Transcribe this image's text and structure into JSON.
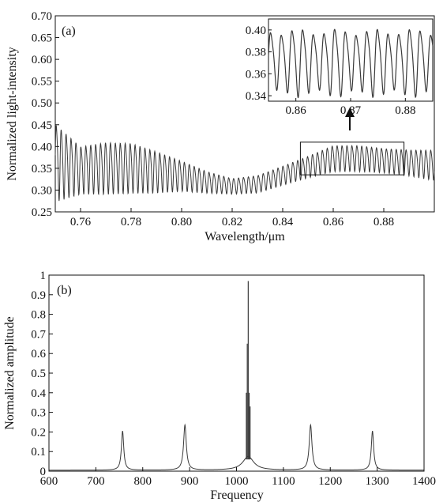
{
  "chart_data": [
    {
      "type": "line",
      "panel_label": "(a)",
      "xlabel": "Wavelength/μm",
      "ylabel": "Normalized light-intensity",
      "xlim": [
        0.75,
        0.9
      ],
      "ylim": [
        0.25,
        0.7
      ],
      "x_ticks": [
        0.76,
        0.78,
        0.8,
        0.82,
        0.84,
        0.86,
        0.88
      ],
      "x_tick_labels": [
        "0.76",
        "0.78",
        "0.80",
        "0.82",
        "0.84",
        "0.86",
        "0.88"
      ],
      "y_ticks": [
        0.25,
        0.3,
        0.35,
        0.4,
        0.45,
        0.5,
        0.55,
        0.6,
        0.65,
        0.7
      ],
      "y_tick_labels": [
        "0.25",
        "0.30",
        "0.35",
        "0.40",
        "0.45",
        "0.50",
        "0.55",
        "0.60",
        "0.65",
        "0.70"
      ],
      "series": [
        {
          "description_values": "oscillating interference signal",
          "x_start": 0.75,
          "x_end": 0.9,
          "period": 0.00195,
          "envelope_points": [
            [
              0.75,
              0.37,
              0.09
            ],
            [
              0.76,
              0.35,
              0.055
            ],
            [
              0.77,
              0.355,
              0.06
            ],
            [
              0.78,
              0.355,
              0.058
            ],
            [
              0.79,
              0.345,
              0.048
            ],
            [
              0.8,
              0.335,
              0.035
            ],
            [
              0.81,
              0.32,
              0.025
            ],
            [
              0.82,
              0.31,
              0.018
            ],
            [
              0.83,
              0.315,
              0.02
            ],
            [
              0.84,
              0.335,
              0.022
            ],
            [
              0.85,
              0.355,
              0.025
            ],
            [
              0.86,
              0.375,
              0.03
            ],
            [
              0.87,
              0.375,
              0.03
            ],
            [
              0.88,
              0.37,
              0.028
            ],
            [
              0.89,
              0.365,
              0.03
            ],
            [
              0.9,
              0.36,
              0.035
            ]
          ]
        }
      ],
      "inset": {
        "xlim": [
          0.855,
          0.885
        ],
        "ylim": [
          0.335,
          0.41
        ],
        "x_ticks": [
          0.86,
          0.87,
          0.88
        ],
        "x_tick_labels": [
          "0.86",
          "0.87",
          "0.88"
        ],
        "y_ticks": [
          0.34,
          0.36,
          0.38,
          0.4
        ],
        "y_tick_labels": [
          "0.34",
          "0.36",
          "0.38",
          "0.40"
        ],
        "zoom_box": {
          "xlim": [
            0.847,
            0.888
          ],
          "ylim": [
            0.335,
            0.41
          ]
        }
      },
      "grid": false
    },
    {
      "type": "line",
      "panel_label": "(b)",
      "xlabel": "Frequency",
      "ylabel": "Normalized amplitude",
      "xlim": [
        600,
        1400
      ],
      "ylim": [
        0,
        1
      ],
      "x_ticks": [
        600,
        700,
        800,
        900,
        1000,
        1100,
        1200,
        1300,
        1400
      ],
      "x_tick_labels": [
        "600",
        "700",
        "800",
        "900",
        "1000",
        "1100",
        "1200",
        "1300",
        "1400"
      ],
      "y_ticks": [
        0,
        0.1,
        0.2,
        0.3,
        0.4,
        0.5,
        0.6,
        0.7,
        0.8,
        0.9,
        1
      ],
      "y_tick_labels": [
        "0",
        "0.1",
        "0.2",
        "0.3",
        "0.4",
        "0.5",
        "0.6",
        "0.7",
        "0.8",
        "0.9",
        "1"
      ],
      "peaks": [
        {
          "x": 757,
          "y": 0.2,
          "width": 3
        },
        {
          "x": 890,
          "y": 0.23,
          "width": 3.5
        },
        {
          "x": 1025,
          "y": 0.97,
          "width": 1.5
        },
        {
          "x": 1158,
          "y": 0.23,
          "width": 3.5
        },
        {
          "x": 1290,
          "y": 0.2,
          "width": 3
        }
      ],
      "center_cluster": [
        {
          "x": 1021,
          "y": 0.4
        },
        {
          "x": 1023,
          "y": 0.65
        },
        {
          "x": 1025,
          "y": 0.97
        },
        {
          "x": 1027,
          "y": 0.4
        },
        {
          "x": 1029,
          "y": 0.33
        }
      ],
      "baseline": 0.005,
      "grid": false
    }
  ]
}
